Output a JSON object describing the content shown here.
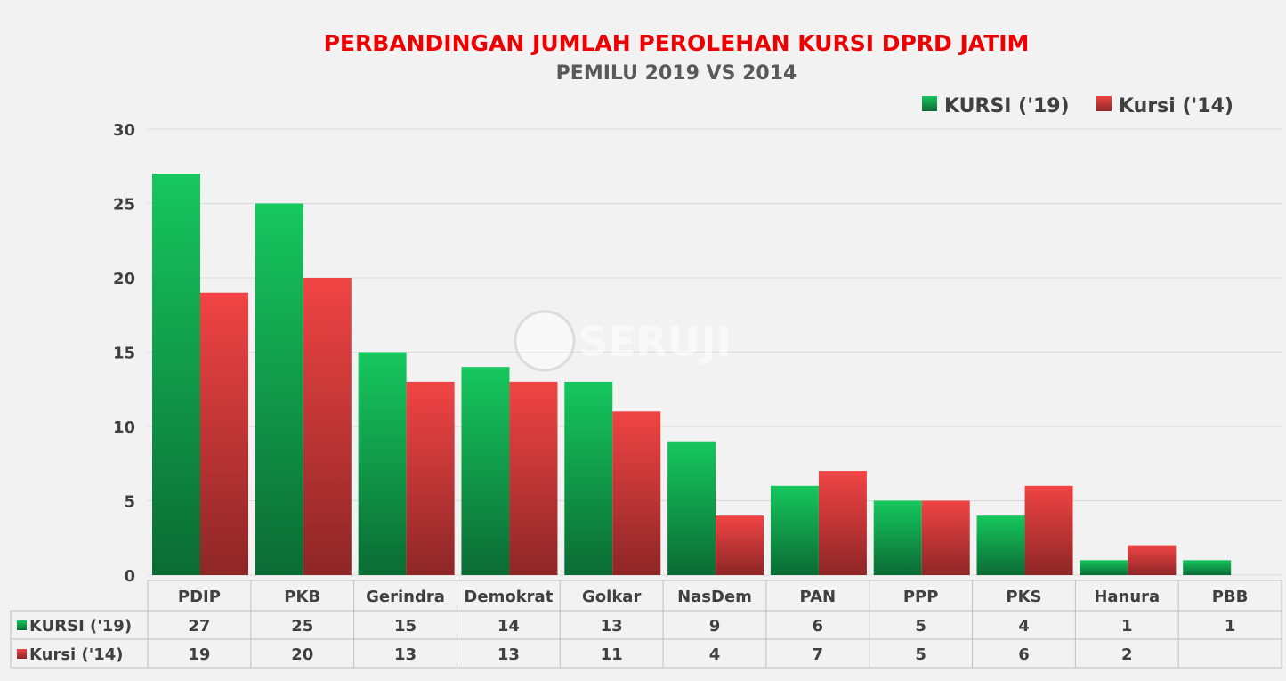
{
  "chart_data": {
    "type": "bar",
    "title": "PERBANDINGAN JUMLAH PEROLEHAN KURSI DPRD JATIM",
    "subtitle": "PEMILU 2019 VS 2014",
    "categories": [
      "PDIP",
      "PKB",
      "Gerindra",
      "Demokrat",
      "Golkar",
      "NasDem",
      "PAN",
      "PPP",
      "PKS",
      "Hanura",
      "PBB"
    ],
    "series": [
      {
        "name": "KURSI ('19)",
        "values": [
          27,
          25,
          15,
          14,
          13,
          9,
          6,
          5,
          4,
          1,
          1
        ],
        "color": "#16c75e",
        "color_dark": "#0b6b34"
      },
      {
        "name": "Kursi ('14)",
        "values": [
          19,
          20,
          13,
          13,
          11,
          4,
          7,
          5,
          6,
          2,
          null
        ],
        "color": "#f04444",
        "color_dark": "#8e2626"
      }
    ],
    "ylim": [
      0,
      30
    ],
    "yticks": [
      0,
      5,
      10,
      15,
      20,
      25,
      30
    ],
    "grid": true,
    "legend": "top-right",
    "data_table": true
  },
  "watermark": {
    "text": "SERUJI"
  }
}
